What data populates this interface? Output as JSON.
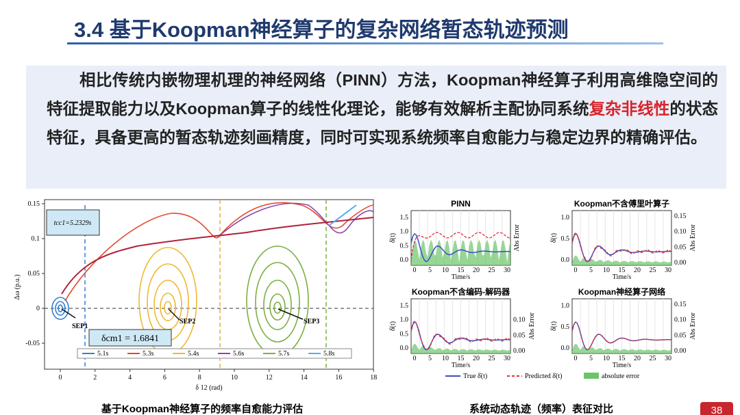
{
  "header": {
    "title": "3.4 基于Koopman神经算子的复杂网络暂态轨迹预测"
  },
  "summary": {
    "before": "相比传统内嵌物理机理的神经网络（PINN）方法，Koopman神经算子利用高维隐空间的特征提取能力以及Koopman算子的线性化理论，能够有效解析主配协同系统",
    "highlight": "复杂非线性",
    "after": "的状态特征，具备更高的暂态轨迹刻画精度，同时可实现系统频率自愈能力与稳定边界的精确评估。"
  },
  "left_figure": {
    "ylabel": "Δω (p.u.)",
    "xlabel": "δ 12 (rad)",
    "xticks": [
      "0",
      "2",
      "4",
      "6",
      "8",
      "10",
      "12",
      "14",
      "16",
      "18"
    ],
    "yticks": [
      "0.15",
      "0.1",
      "0.05",
      "0",
      "-0.05"
    ],
    "annotations": {
      "tcc": "tcc1=5.2329s",
      "dcm": "δcm1 = 1.6841",
      "sep1": "SEP1",
      "sep2": "SEP2",
      "sep3": "SEP3"
    },
    "legend": [
      "5.1s",
      "5.3s",
      "5.4s",
      "5.6s",
      "5.7s",
      "5.8s"
    ],
    "caption": "基于Koopman神经算子的频率自愈能力评估"
  },
  "right_figure": {
    "panels": [
      {
        "title": "PINN",
        "xlabel": "Time/s",
        "ylabel": "δ̇(t)",
        "y2label": "Abs Error",
        "xticks": [
          "0",
          "5",
          "10",
          "15",
          "20",
          "25",
          "30"
        ],
        "yticks": [
          "0.0",
          "0.5",
          "1.0",
          "1.5"
        ],
        "y2ticks": []
      },
      {
        "title": "Koopman不含傅里叶算子",
        "xlabel": "Time/s",
        "ylabel": "δ̇(t)",
        "y2label": "Abs Error",
        "xticks": [
          "0",
          "5",
          "10",
          "15",
          "20",
          "25",
          "30"
        ],
        "yticks": [
          "0.0",
          "0.5",
          "1.0"
        ],
        "y2ticks": [
          "0.00",
          "0.05",
          "0.10",
          "0.15"
        ]
      },
      {
        "title": "Koopman不含编码-解码器",
        "xlabel": "Time/s",
        "ylabel": "δ̇(t)",
        "y2label": "Abs Error",
        "xticks": [
          "0",
          "5",
          "10",
          "15",
          "20",
          "25",
          "30"
        ],
        "yticks": [
          "0.0",
          "0.5",
          "1.0",
          "1.5"
        ],
        "y2ticks": [
          "0.00",
          "0.05",
          "0.10"
        ]
      },
      {
        "title": "Koopman神经算子网络",
        "xlabel": "Time/s",
        "ylabel": "δ̇(t)",
        "y2label": "Abs Error",
        "xticks": [
          "0",
          "5",
          "10",
          "15",
          "20",
          "25",
          "30"
        ],
        "yticks": [
          "0.0",
          "0.5",
          "1.0"
        ],
        "y2ticks": [
          "0.00",
          "0.05",
          "0.10",
          "0.15"
        ]
      }
    ],
    "legend": [
      "True δ̇(t)",
      "Predicted δ̇(t)",
      "absolute error"
    ],
    "caption": "系统动态轨迹（频率）表征对比"
  },
  "page_number": "38"
}
